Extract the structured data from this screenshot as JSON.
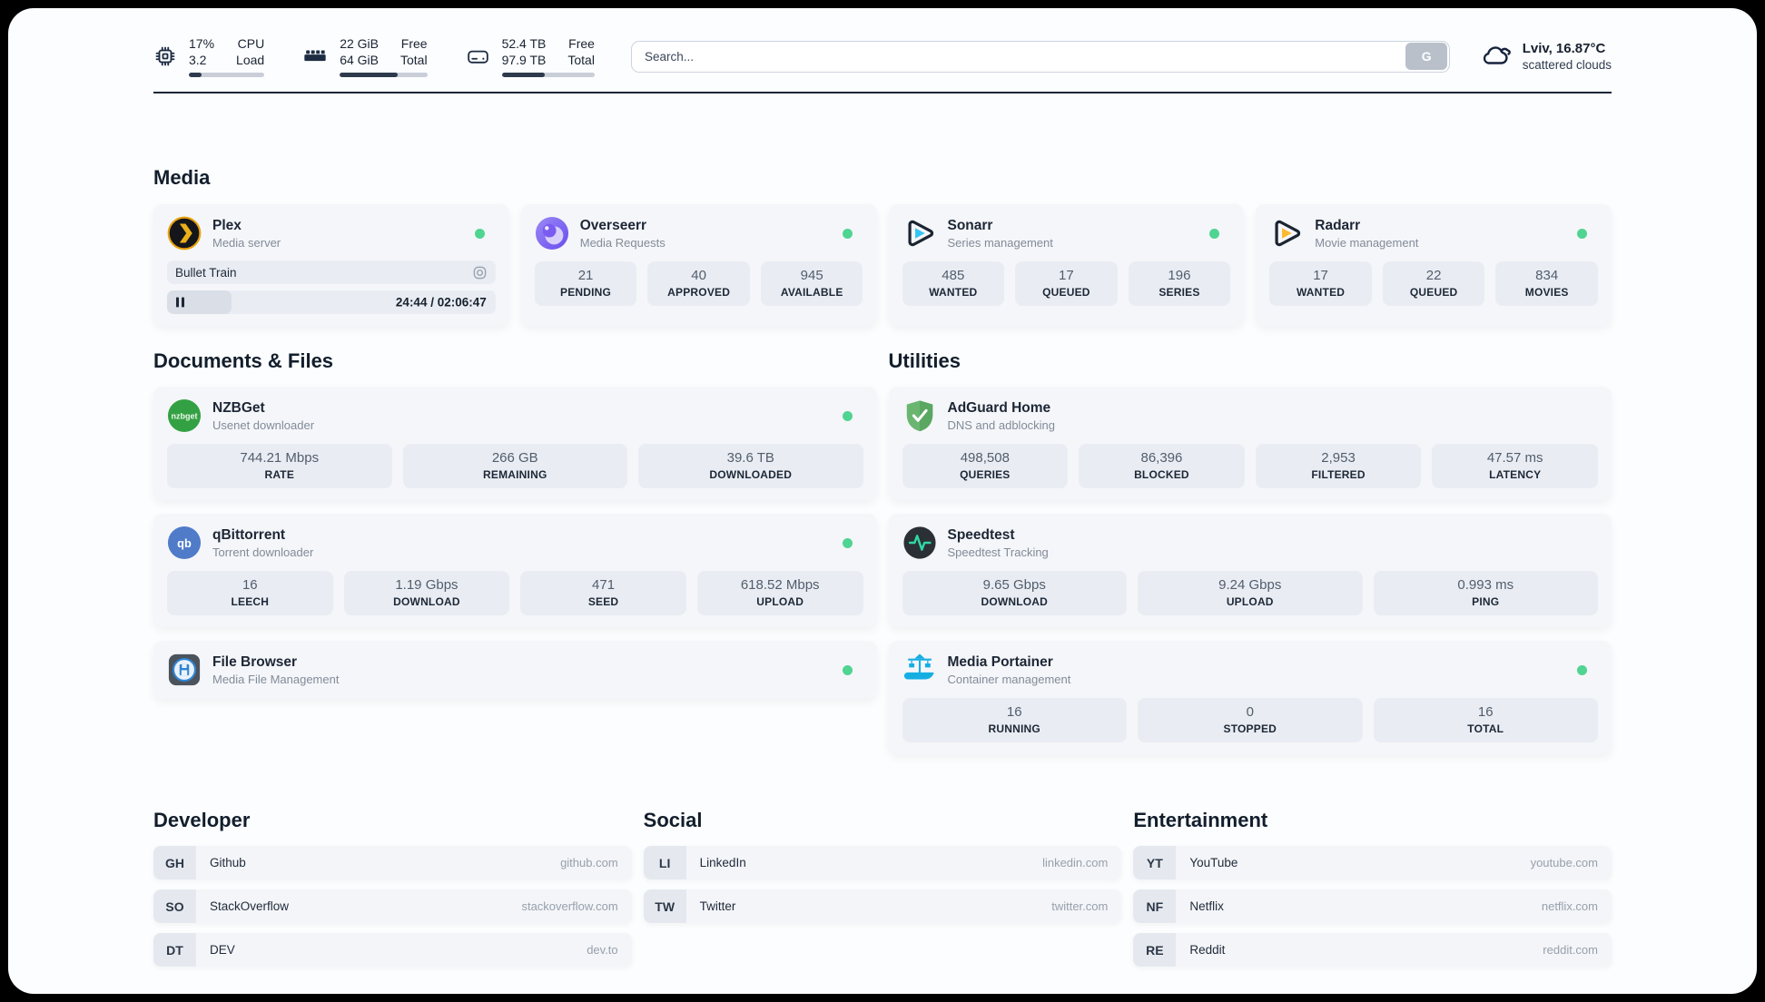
{
  "topbar": {
    "widgets": [
      {
        "icon": "cpu",
        "rows": [
          {
            "value": "17%",
            "label": "CPU"
          },
          {
            "value": "3.2",
            "label": "Load"
          }
        ],
        "percent": 17
      },
      {
        "icon": "memory",
        "rows": [
          {
            "value": "22 GiB",
            "label": "Free"
          },
          {
            "value": "64 GiB",
            "label": "Total"
          }
        ],
        "percent": 66
      },
      {
        "icon": "disk",
        "rows": [
          {
            "value": "52.4 TB",
            "label": "Free"
          },
          {
            "value": "97.9 TB",
            "label": "Total"
          }
        ],
        "percent": 46
      }
    ],
    "search": {
      "placeholder": "Search...",
      "button": "G"
    },
    "weather": {
      "icon": "cloud",
      "line1": "Lviv, 16.87°C",
      "line2": "scattered clouds"
    }
  },
  "groups": [
    {
      "title": "Media",
      "services": [
        {
          "icon": "plex",
          "name": "Plex",
          "subtitle": "Media server",
          "online": true,
          "player": {
            "title": "Bullet Train",
            "time": "24:44 / 02:06:47",
            "progress_percent": 19.5
          }
        },
        {
          "icon": "overseerr",
          "name": "Overseerr",
          "subtitle": "Media Requests",
          "online": true,
          "stats": [
            {
              "value": "21",
              "label": "PENDING"
            },
            {
              "value": "40",
              "label": "APPROVED"
            },
            {
              "value": "945",
              "label": "AVAILABLE"
            }
          ]
        },
        {
          "icon": "sonarr",
          "name": "Sonarr",
          "subtitle": "Series management",
          "online": true,
          "stats": [
            {
              "value": "485",
              "label": "WANTED"
            },
            {
              "value": "17",
              "label": "QUEUED"
            },
            {
              "value": "196",
              "label": "SERIES"
            }
          ]
        },
        {
          "icon": "radarr",
          "name": "Radarr",
          "subtitle": "Movie management",
          "online": true,
          "stats": [
            {
              "value": "17",
              "label": "WANTED"
            },
            {
              "value": "22",
              "label": "QUEUED"
            },
            {
              "value": "834",
              "label": "MOVIES"
            }
          ]
        }
      ]
    },
    {
      "title": "Documents & Files",
      "services": [
        {
          "icon": "nzbget",
          "name": "NZBGet",
          "subtitle": "Usenet downloader",
          "online": true,
          "stats": [
            {
              "value": "744.21 Mbps",
              "label": "RATE"
            },
            {
              "value": "266 GB",
              "label": "REMAINING"
            },
            {
              "value": "39.6 TB",
              "label": "DOWNLOADED"
            }
          ]
        },
        {
          "icon": "qbittorrent",
          "name": "qBittorrent",
          "subtitle": "Torrent downloader",
          "online": true,
          "stats": [
            {
              "value": "16",
              "label": "LEECH"
            },
            {
              "value": "1.19 Gbps",
              "label": "DOWNLOAD"
            },
            {
              "value": "471",
              "label": "SEED"
            },
            {
              "value": "618.52 Mbps",
              "label": "UPLOAD"
            }
          ]
        },
        {
          "icon": "filebrowser",
          "name": "File Browser",
          "subtitle": "Media File Management",
          "online": true
        }
      ]
    },
    {
      "title": "Utilities",
      "services": [
        {
          "icon": "adguard",
          "name": "AdGuard Home",
          "subtitle": "DNS and adblocking",
          "online": false,
          "stats": [
            {
              "value": "498,508",
              "label": "QUERIES"
            },
            {
              "value": "86,396",
              "label": "BLOCKED"
            },
            {
              "value": "2,953",
              "label": "FILTERED"
            },
            {
              "value": "47.57 ms",
              "label": "LATENCY"
            }
          ]
        },
        {
          "icon": "speedtest",
          "name": "Speedtest",
          "subtitle": "Speedtest Tracking",
          "online": false,
          "stats": [
            {
              "value": "9.65 Gbps",
              "label": "DOWNLOAD"
            },
            {
              "value": "9.24 Gbps",
              "label": "UPLOAD"
            },
            {
              "value": "0.993 ms",
              "label": "PING"
            }
          ]
        },
        {
          "icon": "portainer",
          "name": "Media Portainer",
          "subtitle": "Container management",
          "online": true,
          "stats": [
            {
              "value": "16",
              "label": "RUNNING"
            },
            {
              "value": "0",
              "label": "STOPPED"
            },
            {
              "value": "16",
              "label": "TOTAL"
            }
          ]
        }
      ]
    }
  ],
  "bookmarks": [
    {
      "title": "Developer",
      "items": [
        {
          "abbr": "GH",
          "name": "Github",
          "url": "github.com"
        },
        {
          "abbr": "SO",
          "name": "StackOverflow",
          "url": "stackoverflow.com"
        },
        {
          "abbr": "DT",
          "name": "DEV",
          "url": "dev.to"
        }
      ]
    },
    {
      "title": "Social",
      "items": [
        {
          "abbr": "LI",
          "name": "LinkedIn",
          "url": "linkedin.com"
        },
        {
          "abbr": "TW",
          "name": "Twitter",
          "url": "twitter.com"
        }
      ]
    },
    {
      "title": "Entertainment",
      "items": [
        {
          "abbr": "YT",
          "name": "YouTube",
          "url": "youtube.com"
        },
        {
          "abbr": "NF",
          "name": "Netflix",
          "url": "netflix.com"
        },
        {
          "abbr": "RE",
          "name": "Reddit",
          "url": "reddit.com"
        }
      ]
    }
  ],
  "colors": {
    "status_online": "#4fd492",
    "accent_dark": "#1d2736",
    "progress_fill": "#2e3a4c"
  }
}
